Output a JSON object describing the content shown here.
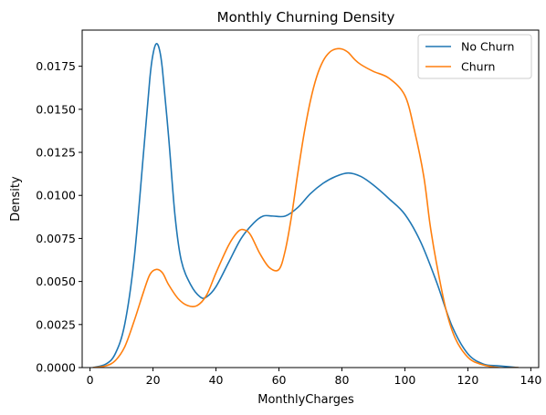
{
  "chart_data": {
    "type": "line",
    "title": "Monthly Churning Density",
    "xlabel": "MonthlyCharges",
    "ylabel": "Density",
    "xlim": [
      -2.5,
      142.5
    ],
    "ylim": [
      0,
      0.0196
    ],
    "xticks": [
      0,
      20,
      40,
      60,
      80,
      100,
      120,
      140
    ],
    "yticks": [
      0.0,
      0.0025,
      0.005,
      0.0075,
      0.01,
      0.0125,
      0.015,
      0.0175
    ],
    "ytick_labels": [
      "0.0000",
      "0.0025",
      "0.0050",
      "0.0075",
      "0.0100",
      "0.0125",
      "0.0150",
      "0.0175"
    ],
    "grid": false,
    "legend_position": "top-right",
    "series": [
      {
        "name": "No Churn",
        "color": "#1f77b4",
        "x": [
          1,
          5,
          8,
          11,
          14,
          17,
          19,
          20,
          21,
          22,
          23,
          25,
          27,
          29,
          32,
          35,
          37,
          40,
          44,
          48,
          52,
          55,
          58,
          62,
          66,
          70,
          74,
          78,
          82,
          86,
          90,
          95,
          100,
          105,
          110,
          115,
          120,
          125,
          130,
          136
        ],
        "y": [
          0.0,
          0.0002,
          0.0008,
          0.0025,
          0.0063,
          0.0125,
          0.0168,
          0.0182,
          0.0188,
          0.0185,
          0.0173,
          0.0133,
          0.0088,
          0.0062,
          0.0048,
          0.0041,
          0.0041,
          0.0047,
          0.0061,
          0.0075,
          0.0084,
          0.0088,
          0.0088,
          0.0088,
          0.0093,
          0.0101,
          0.0107,
          0.0111,
          0.0113,
          0.0111,
          0.0106,
          0.0098,
          0.0089,
          0.0073,
          0.005,
          0.0024,
          0.0008,
          0.0002,
          0.0001,
          0.0
        ]
      },
      {
        "name": "Churn",
        "color": "#ff7f0e",
        "x": [
          1,
          5,
          8,
          11,
          14,
          17,
          19,
          21,
          23,
          25,
          28,
          31,
          34,
          37,
          40,
          44,
          47,
          49,
          51,
          54,
          57,
          60,
          62,
          64,
          66,
          68,
          70,
          72,
          74,
          76,
          78,
          80,
          82,
          84,
          86,
          90,
          95,
          100,
          103,
          106,
          108,
          110,
          113,
          116,
          120,
          124,
          130,
          136
        ],
        "y": [
          0.0,
          0.0001,
          0.0004,
          0.0012,
          0.0027,
          0.0044,
          0.0054,
          0.0057,
          0.0055,
          0.0048,
          0.004,
          0.0036,
          0.0036,
          0.0042,
          0.0055,
          0.0071,
          0.0079,
          0.008,
          0.0077,
          0.0066,
          0.0058,
          0.0057,
          0.0068,
          0.0088,
          0.0113,
          0.0136,
          0.0155,
          0.0169,
          0.0178,
          0.0183,
          0.0185,
          0.0185,
          0.0183,
          0.0179,
          0.0176,
          0.0172,
          0.0168,
          0.0158,
          0.0138,
          0.0111,
          0.0083,
          0.0061,
          0.0034,
          0.0017,
          0.0006,
          0.0002,
          0.0,
          0.0
        ]
      }
    ]
  }
}
